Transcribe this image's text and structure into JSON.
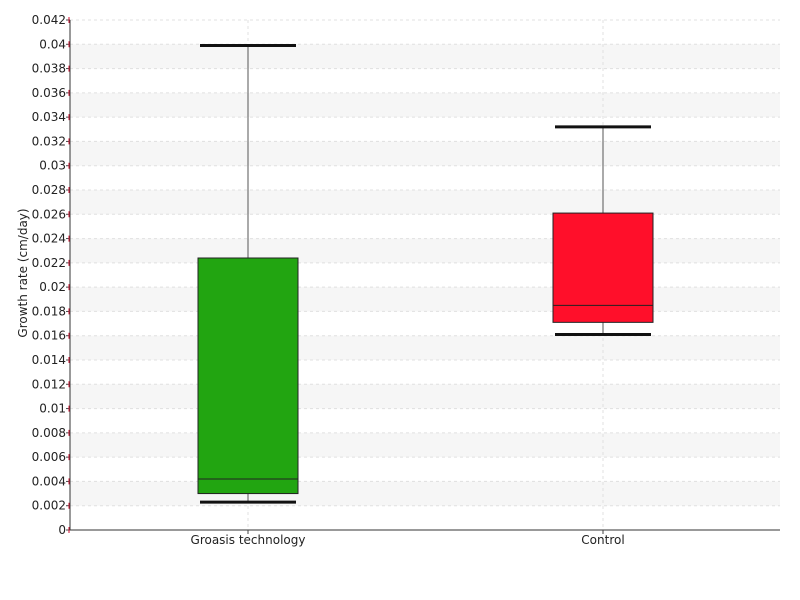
{
  "chart_data": {
    "type": "box",
    "title": "",
    "xlabel": "",
    "ylabel": "Growth rate (cm/day)",
    "ylim": [
      0,
      0.042
    ],
    "ytick_step": 0.002,
    "yticks": [
      "0",
      "0.002",
      "0.004",
      "0.006",
      "0.008",
      "0.01",
      "0.012",
      "0.014",
      "0.016",
      "0.018",
      "0.02",
      "0.022",
      "0.024",
      "0.026",
      "0.028",
      "0.03",
      "0.032",
      "0.034",
      "0.036",
      "0.038",
      "0.04",
      "0.042"
    ],
    "grid": true,
    "legend": "none",
    "categories": [
      "Groasis technology",
      "Control"
    ],
    "boxes": [
      {
        "category": "Groasis technology",
        "whisker_low": 0.0023,
        "q1": 0.003,
        "median": 0.0042,
        "q3": 0.0224,
        "whisker_high": 0.0399,
        "color": "#22a511"
      },
      {
        "category": "Control",
        "whisker_low": 0.0161,
        "q1": 0.0171,
        "median": 0.0185,
        "q3": 0.0261,
        "whisker_high": 0.0332,
        "color": "#ff0f2a"
      }
    ]
  }
}
